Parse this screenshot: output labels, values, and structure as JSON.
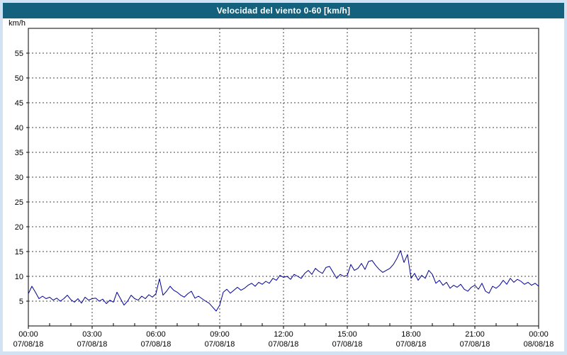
{
  "header": {
    "title": "Velocidad del viento 0-60 [km/h]"
  },
  "colors": {
    "title_bar": "#14617e",
    "frame": "#d2e2f2",
    "panel": "#ffffff",
    "line": "#000099",
    "grid": "#444444",
    "axis": "#000000",
    "text": "#000000"
  },
  "chart_data": {
    "type": "line",
    "title": "Velocidad del viento 0-60 [km/h]",
    "ylabel": "km/h",
    "ylim": [
      0,
      60
    ],
    "y_ticks": [
      5,
      10,
      15,
      20,
      25,
      30,
      35,
      40,
      45,
      50,
      55
    ],
    "x_range_hours": [
      0,
      24
    ],
    "x_ticks": [
      {
        "hour": 0,
        "time": "00:00",
        "date": "07/08/18"
      },
      {
        "hour": 3,
        "time": "03:00",
        "date": "07/08/18"
      },
      {
        "hour": 6,
        "time": "06:00",
        "date": "07/08/18"
      },
      {
        "hour": 9,
        "time": "09:00",
        "date": "07/08/18"
      },
      {
        "hour": 12,
        "time": "12:00",
        "date": "07/08/18"
      },
      {
        "hour": 15,
        "time": "15:00",
        "date": "07/08/18"
      },
      {
        "hour": 18,
        "time": "18:00",
        "date": "07/08/18"
      },
      {
        "hour": 21,
        "time": "21:00",
        "date": "07/08/18"
      },
      {
        "hour": 24,
        "time": "00:00",
        "date": "08/08/18"
      }
    ],
    "grid": "dashed",
    "legend": "none",
    "series": [
      {
        "name": "Velocidad del viento",
        "color": "#000099",
        "x_start_hour": 0,
        "x_step_hours": 0.1666667,
        "values": [
          6.5,
          8.0,
          6.8,
          5.5,
          6.0,
          5.5,
          5.8,
          5.2,
          5.6,
          5.0,
          5.5,
          6.2,
          5.3,
          4.8,
          5.5,
          4.6,
          5.8,
          5.2,
          5.5,
          5.6,
          5.0,
          5.4,
          4.5,
          5.2,
          4.8,
          6.8,
          5.5,
          4.2,
          5.0,
          6.2,
          5.5,
          5.2,
          6.0,
          5.5,
          6.3,
          5.8,
          6.5,
          9.5,
          6.2,
          7.0,
          8.0,
          7.2,
          6.8,
          6.2,
          5.8,
          6.5,
          7.0,
          5.6,
          6.0,
          5.5,
          5.0,
          4.6,
          3.8,
          3.0,
          4.2,
          6.8,
          7.4,
          6.6,
          7.2,
          7.8,
          7.2,
          7.6,
          8.2,
          8.6,
          8.0,
          8.8,
          8.4,
          9.0,
          8.6,
          9.6,
          9.2,
          10.2,
          9.8,
          10.0,
          9.4,
          10.4,
          10.0,
          9.6,
          10.6,
          11.2,
          10.4,
          11.6,
          11.0,
          10.6,
          11.8,
          12.0,
          10.8,
          9.6,
          10.4,
          10.0,
          10.2,
          12.4,
          11.2,
          11.6,
          12.6,
          11.4,
          13.0,
          13.2,
          12.2,
          11.4,
          10.8,
          11.2,
          11.6,
          12.4,
          13.6,
          15.2,
          12.8,
          14.4,
          9.6,
          10.6,
          9.2,
          10.2,
          9.6,
          11.2,
          10.4,
          8.6,
          9.2,
          8.2,
          8.8,
          7.6,
          8.2,
          7.8,
          8.4,
          7.4,
          7.0,
          7.8,
          8.2,
          7.4,
          8.6,
          7.0,
          6.6,
          8.0,
          7.6,
          8.2,
          9.2,
          8.4,
          9.6,
          8.8,
          9.4,
          9.0,
          8.4,
          8.8,
          8.2,
          8.6,
          8.0
        ]
      }
    ]
  }
}
